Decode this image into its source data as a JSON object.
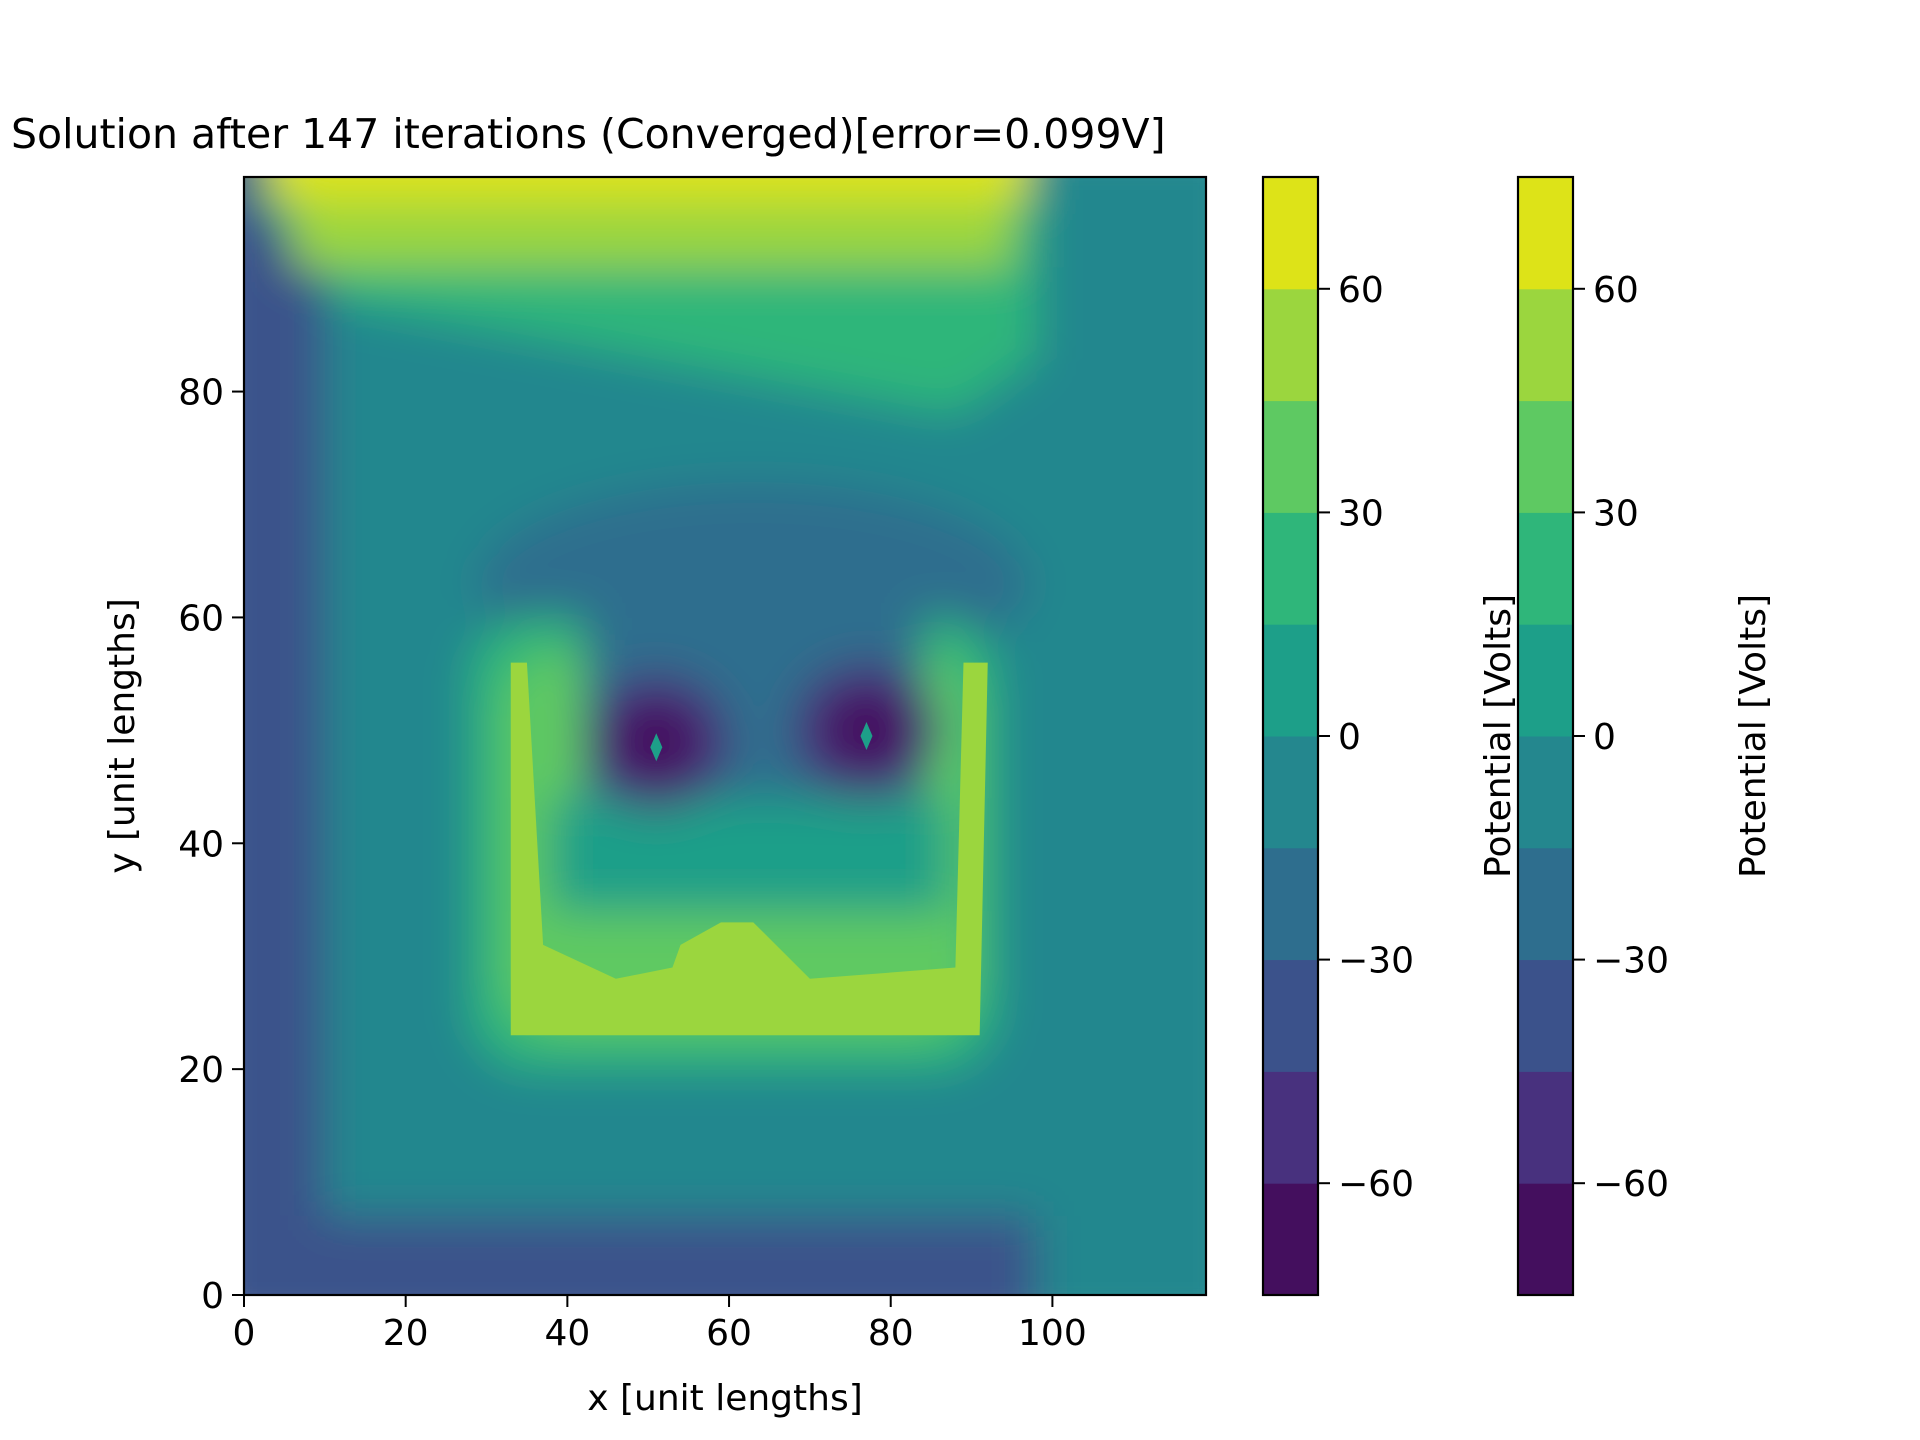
{
  "chart_data": {
    "type": "heatmap",
    "title": "Solution after 147 iterations (Converged)[error=0.099V]",
    "xlabel": "x [unit lengths]",
    "ylabel": "y [unit lengths]",
    "xlim": [
      0,
      119
    ],
    "ylim": [
      0,
      99
    ],
    "x_ticks": [
      0,
      20,
      40,
      60,
      80,
      100
    ],
    "y_ticks": [
      0,
      20,
      40,
      60,
      80
    ],
    "x_tick_labels": [
      "0",
      "20",
      "40",
      "60",
      "80",
      "100"
    ],
    "y_tick_labels": [
      "0",
      "20",
      "40",
      "60",
      "80"
    ],
    "grid": false,
    "colormap": "viridis",
    "contour_levels": [
      -75,
      -60,
      -45,
      -30,
      -15,
      0,
      15,
      30,
      45,
      60,
      75
    ],
    "level_colors": [
      "#440f5e",
      "#48317e",
      "#3b528b",
      "#2e6e8e",
      "#24878e",
      "#1d9f89",
      "#2fb67a",
      "#5ec962",
      "#9bd63e",
      "#dde318"
    ],
    "boundary_conditions": [
      {
        "region": "top edge 0-98",
        "potential_V": 75
      },
      {
        "region": "left edge",
        "potential_V": -37
      },
      {
        "region": "bottom edge 0-98",
        "potential_V": -37
      },
      {
        "region": "right strip 98-119",
        "potential_V": -7
      },
      {
        "region": "U-shaped electrode",
        "potential_V": 53
      },
      {
        "region": "electrode 1 at (51,49)",
        "potential_V": -68
      },
      {
        "region": "electrode 2 at (77,50)",
        "potential_V": -68
      }
    ],
    "colorbars": [
      {
        "label": "Potential [Volts]",
        "ticks": [
          -60,
          -30,
          0,
          30,
          60
        ],
        "tick_labels": [
          "−60",
          "−30",
          "0",
          "30",
          "60"
        ],
        "range": [
          -75,
          75
        ]
      },
      {
        "label": "Potential [Volts]",
        "ticks": [
          -60,
          -30,
          0,
          30,
          60
        ],
        "tick_labels": [
          "−60",
          "−30",
          "0",
          "30",
          "60"
        ],
        "range": [
          -75,
          75
        ]
      }
    ]
  }
}
